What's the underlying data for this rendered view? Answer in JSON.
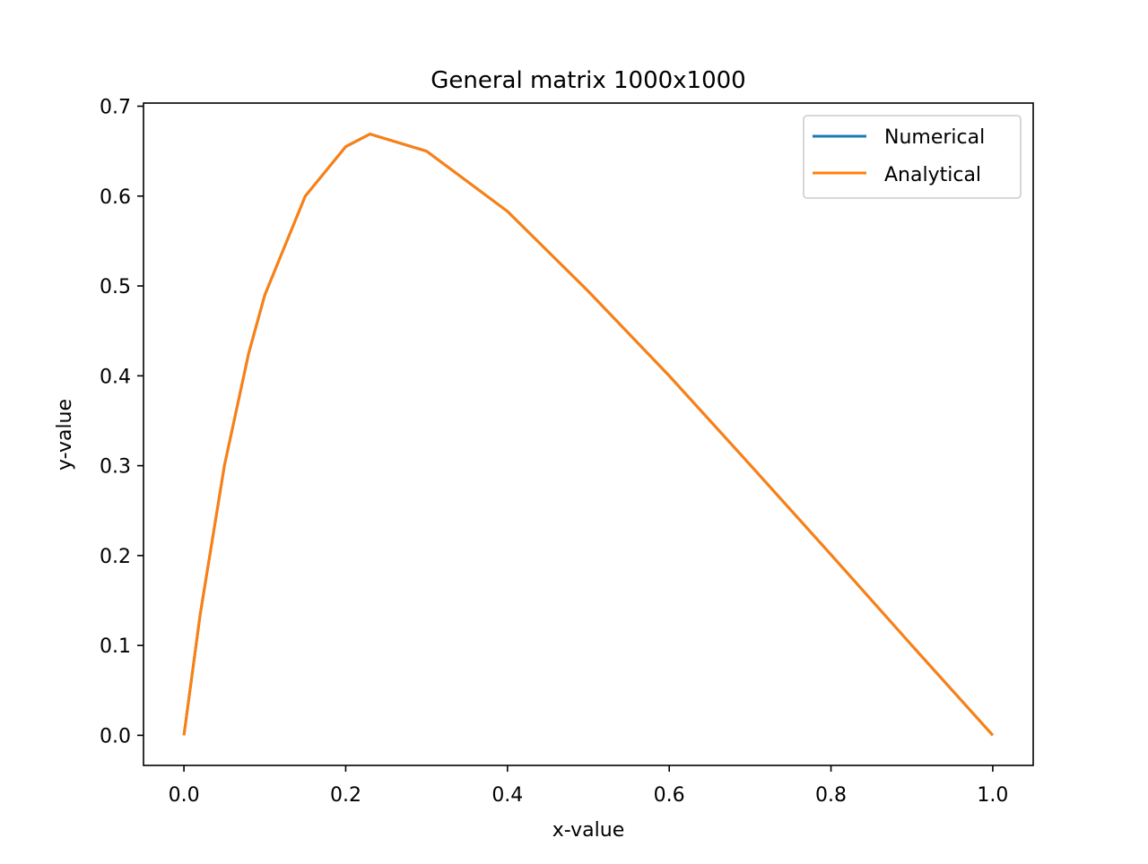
{
  "chart_data": {
    "type": "line",
    "title": "General matrix 1000x1000",
    "xlabel": "x-value",
    "ylabel": "y-value",
    "xlim": [
      -0.05,
      1.05
    ],
    "ylim": [
      -0.0335,
      0.7035
    ],
    "x_ticks": [
      0.0,
      0.2,
      0.4,
      0.6,
      0.8,
      1.0
    ],
    "x_tick_labels": [
      "0.0",
      "0.2",
      "0.4",
      "0.6",
      "0.8",
      "1.0"
    ],
    "y_ticks": [
      0.0,
      0.1,
      0.2,
      0.3,
      0.4,
      0.5,
      0.6,
      0.7
    ],
    "y_tick_labels": [
      "0.0",
      "0.1",
      "0.2",
      "0.3",
      "0.4",
      "0.5",
      "0.6",
      "0.7"
    ],
    "grid": false,
    "legend_position": "top-right",
    "x": [
      0.0,
      0.02,
      0.05,
      0.08,
      0.1,
      0.15,
      0.2,
      0.23,
      0.3,
      0.4,
      0.5,
      0.6,
      0.7,
      0.8,
      0.9,
      1.0
    ],
    "series": [
      {
        "name": "Numerical",
        "color": "#1f77b4",
        "values": [
          0.0,
          0.134,
          0.3,
          0.425,
          0.49,
          0.6,
          0.655,
          0.669,
          0.65,
          0.583,
          0.494,
          0.4,
          0.301,
          0.201,
          0.1,
          0.0
        ]
      },
      {
        "name": "Analytical",
        "color": "#ff7f0e",
        "values": [
          0.0,
          0.134,
          0.3,
          0.425,
          0.49,
          0.6,
          0.655,
          0.669,
          0.65,
          0.583,
          0.494,
          0.4,
          0.301,
          0.201,
          0.1,
          0.0
        ]
      }
    ]
  }
}
